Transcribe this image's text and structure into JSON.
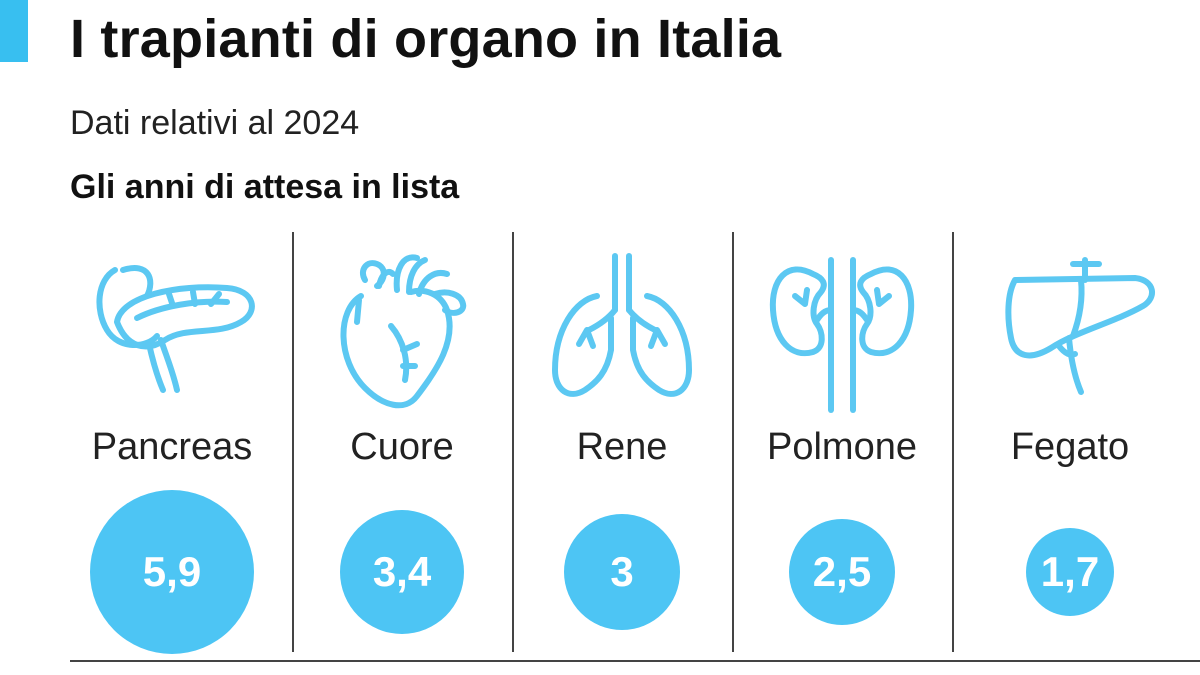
{
  "header": {
    "title": "I trapianti di organo in Italia",
    "subtitle": "Dati relativi al 2024",
    "section_title": "Gli anni di attesa in lista"
  },
  "colors": {
    "accent": "#38bff0",
    "bubble": "#4dc5f4",
    "icon_stroke": "#5cc8f2"
  },
  "chart_data": {
    "type": "bubble",
    "title": "I trapianti di organo in Italia",
    "subtitle": "Dati relativi al 2024",
    "categories": [
      "Pancreas",
      "Cuore",
      "Rene",
      "Polmone",
      "Fegato"
    ],
    "icons": [
      "pancreas-icon",
      "heart-icon",
      "kidney-icon",
      "lungs-icon",
      "liver-icon"
    ],
    "values": [
      5.9,
      3.4,
      3,
      2.5,
      1.7
    ],
    "value_labels": [
      "5,9",
      "3,4",
      "3",
      "2,5",
      "1,7"
    ],
    "ylabel": "Gli anni di attesa in lista"
  }
}
